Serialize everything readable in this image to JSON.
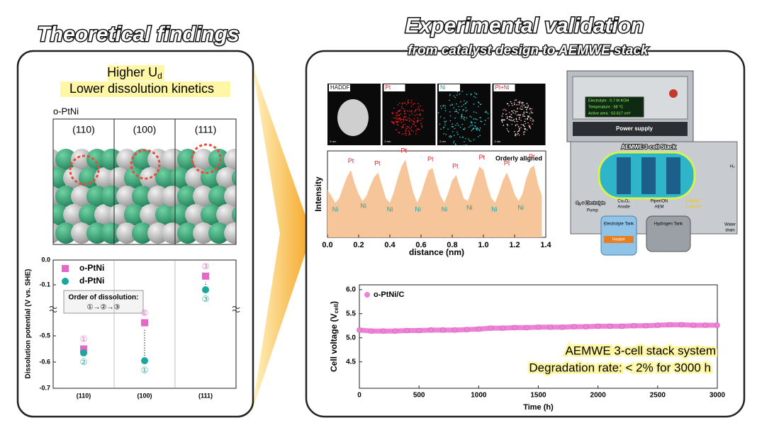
{
  "left": {
    "title": "Theoretical findings",
    "highlight": {
      "main": "Higher U",
      "sub": "d",
      "line2": "Lower dissolution kinetics"
    },
    "model_label": "o-PtNi",
    "facets": [
      "(110)",
      "(100)",
      "(111)"
    ],
    "chart_data": {
      "type": "scatter",
      "ylabel": "Dissolution potential (V vs. SHE)",
      "categories": [
        "(110)",
        "(100)",
        "(111)"
      ],
      "ylim": [
        -0.7,
        0
      ],
      "ybreak": [
        -0.2,
        -0.4
      ],
      "yticks": [
        {
          "value": 0,
          "label": "0.0"
        },
        -0.1,
        -0.5,
        -0.6,
        -0.7
      ],
      "series": [
        {
          "name": "o-PtNi",
          "color": "#e667c8",
          "marker": "square",
          "values": [
            -0.55,
            -0.45,
            -0.065
          ],
          "rank_labels": [
            "①",
            "②",
            "③"
          ]
        },
        {
          "name": "d-PtNi",
          "color": "#1aa89c",
          "marker": "circle",
          "values": [
            -0.565,
            -0.595,
            -0.12
          ],
          "rank_labels": [
            "②",
            "①",
            "③"
          ]
        }
      ],
      "annotation": {
        "line1": "Order of dissolution:",
        "line2": "①→②→③"
      }
    }
  },
  "right": {
    "title": "Experimental validation",
    "subtitle": "from catalyst design to AEMWE stack",
    "images": {
      "labels": [
        "HADDF",
        "Pt",
        "Ni",
        "Pt+Ni"
      ],
      "label_colors": [
        "#111111",
        "#e8202a",
        "#1aa3a3",
        "#e8202a"
      ],
      "scale": "2 nm"
    },
    "profile": {
      "type": "area",
      "xlabel": "distance (nm)",
      "ylabel": "Intensity",
      "note": "Orderly aligned",
      "color": "#f7c59a",
      "xlim": [
        0,
        1.4
      ],
      "ylim": [
        0,
        100
      ],
      "xticks": [
        {
          "value": 0,
          "label": "0.0"
        },
        0.2,
        0.4,
        0.6,
        0.8,
        {
          "value": 1,
          "label": "1.0"
        },
        1.2,
        1.4
      ],
      "x": [
        0,
        0.025,
        0.05,
        0.075,
        0.1,
        0.125,
        0.15,
        0.175,
        0.2,
        0.225,
        0.25,
        0.275,
        0.3,
        0.325,
        0.35,
        0.375,
        0.4,
        0.425,
        0.45,
        0.475,
        0.5,
        0.525,
        0.55,
        0.575,
        0.6,
        0.625,
        0.65,
        0.675,
        0.7,
        0.725,
        0.75,
        0.775,
        0.8,
        0.825,
        0.85,
        0.875,
        0.9,
        0.925,
        0.95,
        0.975,
        1.0,
        1.025,
        1.05,
        1.075,
        1.1,
        1.125,
        1.15,
        1.175,
        1.2,
        1.225,
        1.25,
        1.275,
        1.3,
        1.325,
        1.35,
        1.375
      ],
      "values": [
        55,
        48,
        40,
        45,
        58,
        70,
        78,
        62,
        50,
        42,
        48,
        60,
        70,
        75,
        60,
        45,
        40,
        52,
        68,
        82,
        90,
        70,
        52,
        40,
        50,
        65,
        78,
        80,
        62,
        48,
        40,
        52,
        66,
        72,
        58,
        45,
        42,
        55,
        70,
        82,
        78,
        60,
        46,
        40,
        52,
        66,
        75,
        64,
        50,
        42,
        50,
        68,
        80,
        83,
        62,
        48
      ],
      "annotations": [
        {
          "label": "Ni",
          "x": 0.05,
          "y": 32,
          "color": "#1aa3a3"
        },
        {
          "label": "Pt",
          "x": 0.15,
          "y": 88,
          "color": "#e8202a"
        },
        {
          "label": "Ni",
          "x": 0.23,
          "y": 36,
          "color": "#1aa3a3"
        },
        {
          "label": "Pt",
          "x": 0.32,
          "y": 85,
          "color": "#e8202a"
        },
        {
          "label": "Ni",
          "x": 0.4,
          "y": 32,
          "color": "#1aa3a3"
        },
        {
          "label": "Pt",
          "x": 0.49,
          "y": 100,
          "color": "#e8202a"
        },
        {
          "label": "Ni",
          "x": 0.58,
          "y": 32,
          "color": "#1aa3a3"
        },
        {
          "label": "Pt",
          "x": 0.66,
          "y": 90,
          "color": "#e8202a"
        },
        {
          "label": "Ni",
          "x": 0.75,
          "y": 32,
          "color": "#1aa3a3"
        },
        {
          "label": "Pt",
          "x": 0.82,
          "y": 82,
          "color": "#e8202a"
        },
        {
          "label": "Ni",
          "x": 0.91,
          "y": 34,
          "color": "#1aa3a3"
        },
        {
          "label": "Pt",
          "x": 0.99,
          "y": 92,
          "color": "#e8202a"
        },
        {
          "label": "Ni",
          "x": 1.07,
          "y": 32,
          "color": "#1aa3a3"
        },
        {
          "label": "Pt",
          "x": 1.15,
          "y": 85,
          "color": "#e8202a"
        },
        {
          "label": "Ni",
          "x": 1.24,
          "y": 34,
          "color": "#1aa3a3"
        },
        {
          "label": "Pt",
          "x": 1.31,
          "y": 93,
          "color": "#e8202a"
        }
      ]
    },
    "stack": {
      "display": [
        "Electrolyte : 0.7 M KOH",
        "Temperature : 58 °C",
        "Active area : 63.617 cm²"
      ],
      "power": "Power supply",
      "stack_label": "AEMWE 3-cell Stack",
      "h2": "H₂",
      "o2": "O₂ + Electrolyte",
      "pump": "Pump",
      "anode": [
        "Co₃O₄",
        "Anode"
      ],
      "aem": [
        "PiperION",
        "AEM"
      ],
      "cathode": [
        "o-PtNi/C",
        "Cathode"
      ],
      "electrolyte_tank": "Electrolyte Tank",
      "heater": "Heater",
      "hydrogen_tank": "Hydrogen Tank",
      "water": [
        "Water",
        "drain"
      ]
    },
    "chart_data": {
      "type": "line",
      "xlabel": "Time (h)",
      "ylabel": "Cell voltage (V",
      "ylabel_sub": "cell",
      "ylabel_end": ")",
      "xlim": [
        0,
        3000
      ],
      "ylim": [
        3.95,
        6.1
      ],
      "xticks": [
        0,
        500,
        1000,
        1500,
        2000,
        2500,
        3000
      ],
      "yticks": [
        4.5,
        {
          "value": 5,
          "label": "5.0"
        },
        5.5,
        {
          "value": 6,
          "label": "6.0"
        }
      ],
      "x": [
        0,
        100,
        200,
        300,
        400,
        500,
        600,
        700,
        800,
        900,
        1000,
        1100,
        1200,
        1300,
        1400,
        1500,
        1600,
        1700,
        1800,
        1900,
        2000,
        2100,
        2200,
        2300,
        2400,
        2500,
        2600,
        2700,
        2800,
        2900,
        3000
      ],
      "series": [
        {
          "name": "o-PtNi/C",
          "color": "#ee82d6",
          "values": [
            5.16,
            5.14,
            5.14,
            5.14,
            5.15,
            5.15,
            5.16,
            5.16,
            5.16,
            5.17,
            5.18,
            5.2,
            5.2,
            5.21,
            5.21,
            5.22,
            5.22,
            5.22,
            5.23,
            5.23,
            5.24,
            5.24,
            5.24,
            5.25,
            5.25,
            5.26,
            5.27,
            5.27,
            5.26,
            5.26,
            5.26
          ]
        }
      ],
      "annotation": {
        "line1": "AEMWE 3-cell stack system",
        "line2": "Degradation rate: < 2% for 3000 h"
      }
    }
  }
}
